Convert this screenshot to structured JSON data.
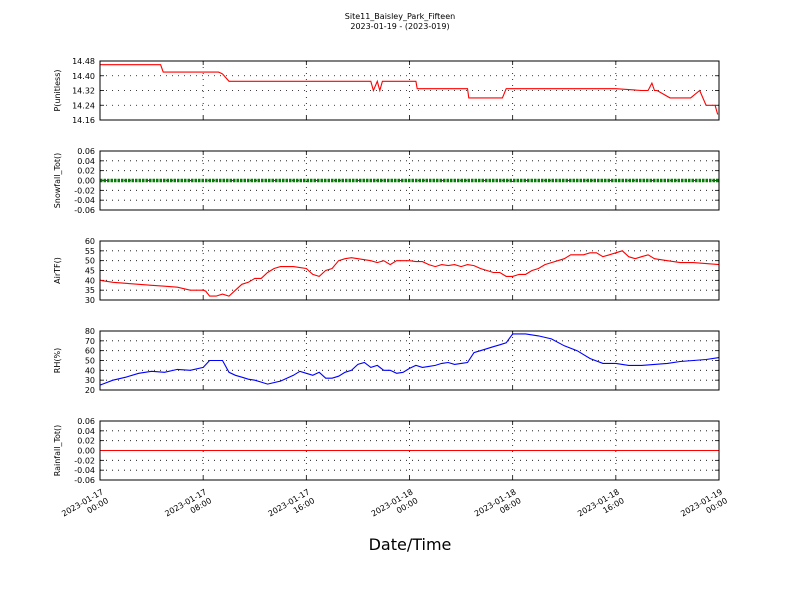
{
  "figure": {
    "title_line1": "Site11_Baisley_Park_Fifteen",
    "title_line2": "2023-01-19 - (2023-019)",
    "xlabel": "Date/Time"
  },
  "x_ticks": [
    {
      "line1": "2023-01-17",
      "line2": "00:00",
      "hours": 0
    },
    {
      "line1": "2023-01-17",
      "line2": "08:00",
      "hours": 8
    },
    {
      "line1": "2023-01-17",
      "line2": "16:00",
      "hours": 16
    },
    {
      "line1": "2023-01-18",
      "line2": "00:00",
      "hours": 24
    },
    {
      "line1": "2023-01-18",
      "line2": "08:00",
      "hours": 32
    },
    {
      "line1": "2023-01-18",
      "line2": "16:00",
      "hours": 40
    },
    {
      "line1": "2023-01-19",
      "line2": "00:00",
      "hours": 48
    }
  ],
  "chart_data": [
    {
      "type": "line",
      "ylabel": "P(unitless)",
      "ylim": [
        14.16,
        14.48
      ],
      "yticks": [
        "14.16",
        "14.24",
        "14.32",
        "14.40",
        "14.48"
      ],
      "xlim_hours": [
        0,
        48
      ],
      "color": "#ff0000",
      "series": [
        {
          "x": [
            0,
            2,
            4.7,
            4.9,
            6,
            9.2,
            9.5,
            10,
            16,
            20,
            21,
            21.2,
            21.5,
            21.7,
            21.9,
            22.1,
            22.3,
            22.5,
            23.5,
            24,
            24.5,
            24.6,
            26,
            28.5,
            28.6,
            30,
            31.2,
            31.5,
            32.5,
            35,
            38,
            40,
            42,
            42.3,
            42.5,
            42.8,
            43,
            43.2,
            44.2,
            45,
            45.8,
            46.5,
            47,
            47.7,
            47.9
          ],
          "y": [
            14.46,
            14.46,
            14.46,
            14.42,
            14.42,
            14.42,
            14.41,
            14.37,
            14.37,
            14.37,
            14.37,
            14.32,
            14.37,
            14.32,
            14.37,
            14.37,
            14.37,
            14.37,
            14.37,
            14.37,
            14.37,
            14.33,
            14.33,
            14.33,
            14.28,
            14.28,
            14.28,
            14.33,
            14.33,
            14.33,
            14.33,
            14.33,
            14.32,
            14.32,
            14.32,
            14.36,
            14.32,
            14.32,
            14.28,
            14.28,
            14.28,
            14.32,
            14.24,
            14.24,
            14.19
          ]
        }
      ]
    },
    {
      "type": "line",
      "ylabel": "Snowfall_Tot()",
      "ylim": [
        -0.06,
        0.06
      ],
      "yticks": [
        "-0.06",
        "-0.04",
        "-0.02",
        "0.00",
        "0.02",
        "0.04",
        "0.06"
      ],
      "xlim_hours": [
        0,
        48
      ],
      "color": "#008000",
      "marker": "dot",
      "series": [
        {
          "x": [
            0,
            48
          ],
          "y": [
            0,
            0
          ]
        }
      ]
    },
    {
      "type": "line",
      "ylabel": "AirTF()",
      "ylim": [
        30,
        60
      ],
      "yticks": [
        "30",
        "35",
        "40",
        "45",
        "50",
        "55",
        "60"
      ],
      "xlim_hours": [
        0,
        48
      ],
      "color": "#ff0000",
      "series": [
        {
          "x": [
            0,
            1,
            2,
            3,
            4,
            5,
            6,
            7,
            7.5,
            8,
            8.2,
            8.5,
            9,
            9.5,
            10,
            10.5,
            11,
            11.5,
            12,
            12.5,
            13,
            13.5,
            14,
            15,
            15.5,
            16,
            16.5,
            17,
            17.5,
            18,
            18.5,
            19,
            19.5,
            20,
            20.5,
            21,
            21.5,
            22,
            22.5,
            23,
            23.5,
            24,
            24.5,
            25,
            25.5,
            26,
            26.5,
            27,
            27.5,
            28,
            28.5,
            29,
            29.5,
            30,
            30.5,
            31,
            31.5,
            32,
            32.5,
            33,
            33.5,
            34,
            34.5,
            35,
            35.5,
            36,
            36.5,
            37,
            37.5,
            38,
            38.5,
            39,
            39.5,
            40,
            40.5,
            41,
            41.5,
            42,
            42.5,
            43,
            44,
            45,
            46,
            47,
            48
          ],
          "y": [
            40,
            39,
            38.5,
            38,
            37.5,
            37,
            36.5,
            35,
            35,
            35,
            34.5,
            32,
            32,
            33,
            32,
            35,
            38,
            39,
            41,
            41,
            44,
            46,
            47,
            47,
            46.5,
            46,
            43,
            42,
            45,
            46,
            50,
            51,
            51.5,
            51,
            50.5,
            50,
            49,
            50,
            48,
            50,
            50,
            50,
            49.5,
            49.5,
            48,
            47,
            48,
            47.5,
            48,
            47,
            48,
            47.5,
            46,
            45,
            44,
            44,
            42,
            42,
            43,
            43,
            45,
            46,
            48,
            49,
            50,
            51,
            53,
            53,
            53,
            54,
            54,
            52,
            53,
            54,
            55,
            52,
            51,
            52,
            53,
            51,
            50,
            49,
            49,
            48.5,
            48
          ]
        }
      ]
    },
    {
      "type": "line",
      "ylabel": "RH(%)",
      "ylim": [
        20,
        80
      ],
      "yticks": [
        "20",
        "30",
        "40",
        "50",
        "60",
        "70",
        "80"
      ],
      "xlim_hours": [
        0,
        48
      ],
      "color": "#0000ff",
      "series": [
        {
          "x": [
            0,
            1,
            2,
            3,
            4,
            5,
            6,
            7,
            8,
            8.5,
            9,
            9.5,
            10,
            10.5,
            11,
            11.5,
            12,
            12.5,
            13,
            14,
            15,
            15.5,
            16,
            16.5,
            17,
            17.5,
            18,
            18.5,
            19,
            19.5,
            20,
            20.5,
            21,
            21.5,
            22,
            22.5,
            23,
            23.5,
            24,
            24.5,
            25,
            25.5,
            26,
            26.5,
            27,
            27.5,
            28,
            28.5,
            29,
            29.5,
            30,
            30.5,
            31,
            31.5,
            32,
            33,
            34,
            35,
            36,
            37,
            38,
            39,
            40,
            40.5,
            41,
            42,
            43,
            44,
            45,
            46,
            47,
            48
          ],
          "y": [
            25,
            30,
            33,
            37,
            39,
            38,
            41,
            40,
            43,
            50,
            50,
            50,
            38,
            35,
            33,
            31,
            30,
            28,
            26,
            29,
            35,
            39,
            37,
            35,
            38,
            32,
            32,
            34,
            38,
            40,
            46,
            48,
            43,
            45,
            40,
            40,
            37,
            38,
            42,
            45,
            43,
            44,
            45,
            47,
            48,
            46,
            47,
            48,
            58,
            60,
            62,
            64,
            66,
            68,
            77,
            77,
            75,
            72,
            65,
            60,
            52,
            47,
            47,
            46,
            45,
            45,
            46,
            47,
            49,
            50,
            51,
            53
          ]
        }
      ]
    },
    {
      "type": "line",
      "ylabel": "Rainfall_Tot()",
      "ylim": [
        -0.06,
        0.06
      ],
      "yticks": [
        "-0.06",
        "-0.04",
        "-0.02",
        "0.00",
        "0.02",
        "0.04",
        "0.06"
      ],
      "xlim_hours": [
        0,
        48
      ],
      "color": "#ff0000",
      "series": [
        {
          "x": [
            0,
            48
          ],
          "y": [
            0,
            0
          ]
        }
      ]
    }
  ]
}
